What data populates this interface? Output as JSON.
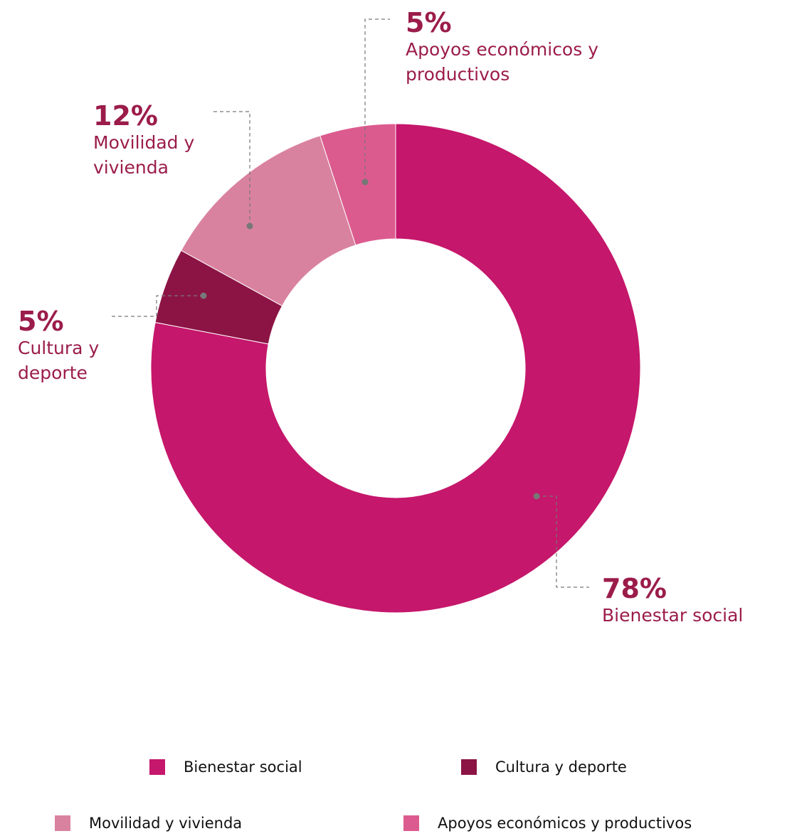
{
  "chart_data": {
    "type": "pie",
    "categories": [
      "Bienestar social",
      "Cultura y deporte",
      "Movilidad y vivienda",
      "Apoyos económicos y productivos"
    ],
    "values": [
      78,
      5,
      12,
      5
    ],
    "value_labels": [
      "78%",
      "5%",
      "12%",
      "5%"
    ],
    "colors": [
      "#c5176b",
      "#8c1445",
      "#d9829f",
      "#dc5b8f"
    ]
  }
}
